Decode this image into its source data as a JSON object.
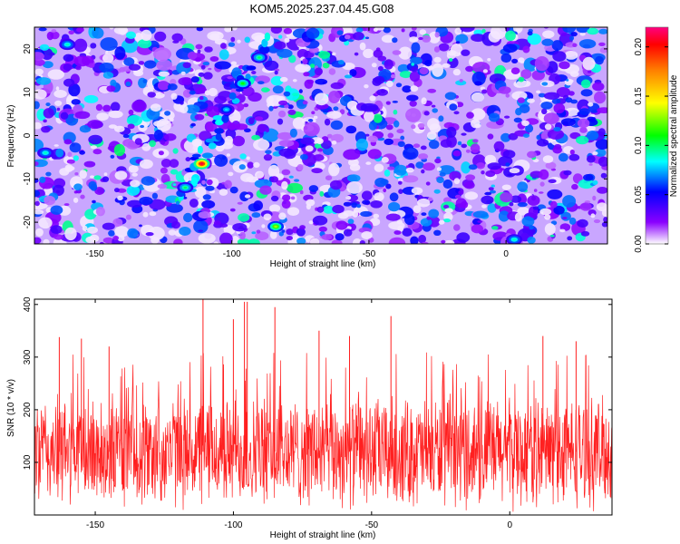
{
  "title": "KOM5.2025.237.04.45.G08",
  "chart_data": [
    {
      "type": "heatmap",
      "xlabel": "Height of straight line (km)",
      "ylabel": "Frequency (Hz)",
      "xlim": [
        -172,
        37
      ],
      "ylim": [
        -25,
        25
      ],
      "x_ticks": [
        -150,
        -100,
        -50,
        0
      ],
      "x_tick_labels": [
        "-150",
        "-100",
        "-50",
        "0"
      ],
      "y_ticks": [
        20,
        10,
        0,
        -10,
        -20
      ],
      "y_tick_labels": [
        "20",
        "10",
        "0",
        "-10",
        "-20"
      ],
      "colorbar": {
        "label": "Normalized spectral amplitude",
        "range": [
          0,
          0.22
        ],
        "ticks": [
          0.0,
          0.05,
          0.1,
          0.15,
          0.2
        ],
        "tick_labels": [
          "0.00",
          "0.05",
          "0.10",
          "0.15",
          "0.20"
        ],
        "colors": [
          "#ffffff",
          "#8a00ff",
          "#0000ff",
          "#00ffff",
          "#00ff00",
          "#ffff00",
          "#ff8000",
          "#ff0000",
          "#ff0080"
        ]
      },
      "hot_spots": [
        {
          "x": -111,
          "y": -6.5,
          "value": 0.21
        },
        {
          "x": -84,
          "y": -21,
          "value": 0.13
        },
        {
          "x": -96,
          "y": 12,
          "value": 0.11
        },
        {
          "x": -90,
          "y": 18,
          "value": 0.1
        },
        {
          "x": -117,
          "y": -12,
          "value": 0.1
        },
        {
          "x": -160,
          "y": 21,
          "value": 0.09
        },
        {
          "x": -168,
          "y": -4,
          "value": 0.09
        },
        {
          "x": 3,
          "y": -24,
          "value": 0.09
        },
        {
          "x": -102,
          "y": 6,
          "value": 0.08
        }
      ],
      "background_level": 0.03
    },
    {
      "type": "line",
      "xlabel": "Height of straight line (km)",
      "ylabel": "SNR (10 * v/v)",
      "xlim": [
        -172,
        37
      ],
      "ylim": [
        0,
        410
      ],
      "x_ticks": [
        -150,
        -100,
        -50,
        0
      ],
      "x_tick_labels": [
        "-150",
        "-100",
        "-50",
        "0"
      ],
      "y_ticks": [
        100,
        200,
        300,
        400
      ],
      "y_tick_labels": [
        "100",
        "200",
        "300",
        "400"
      ],
      "series": [
        {
          "name": "SNR",
          "color": "#ff2020",
          "mean": 120,
          "typical_range": [
            20,
            230
          ],
          "peaks": [
            {
              "x": -111,
              "y": 410
            },
            {
              "x": -96,
              "y": 405
            },
            {
              "x": -95,
              "y": 405
            },
            {
              "x": -85,
              "y": 395
            },
            {
              "x": -100,
              "y": 372
            },
            {
              "x": -43,
              "y": 378
            },
            {
              "x": -163,
              "y": 338
            },
            {
              "x": -155,
              "y": 335
            },
            {
              "x": -145,
              "y": 320
            },
            {
              "x": -69,
              "y": 350
            },
            {
              "x": -58,
              "y": 340
            },
            {
              "x": 12,
              "y": 340
            },
            {
              "x": 24,
              "y": 330
            }
          ]
        }
      ]
    }
  ]
}
